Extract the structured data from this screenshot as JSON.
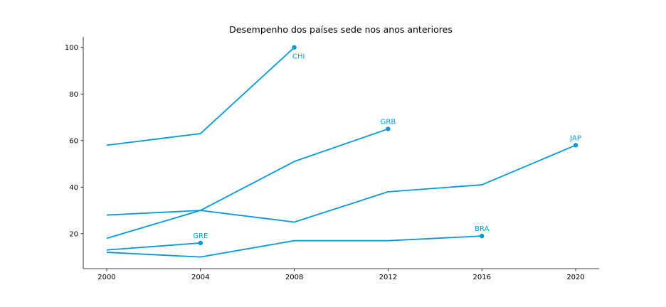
{
  "chart_data": {
    "type": "line",
    "title": "Desempenho dos países sede nos anos anteriores",
    "xlabel": "",
    "ylabel": "",
    "xlim": [
      1999,
      2021
    ],
    "ylim": [
      5,
      104.5
    ],
    "xticks": [
      2000,
      2004,
      2008,
      2012,
      2016,
      2020
    ],
    "yticks": [
      20,
      40,
      60,
      80,
      100
    ],
    "grid": false,
    "color": "#009ADA",
    "series": [
      {
        "label": "CHI",
        "x": [
          2000,
          2004,
          2008
        ],
        "y": [
          58,
          63,
          100
        ]
      },
      {
        "label": "GRB",
        "x": [
          2000,
          2004,
          2008,
          2012
        ],
        "y": [
          18,
          30,
          51,
          65
        ]
      },
      {
        "label": "JAP",
        "x": [
          2000,
          2004,
          2008,
          2012,
          2016,
          2020
        ],
        "y": [
          28,
          30,
          25,
          38,
          41,
          58
        ]
      },
      {
        "label": "GRE",
        "x": [
          2000,
          2004
        ],
        "y": [
          13,
          16
        ]
      },
      {
        "label": "BRA",
        "x": [
          2000,
          2004,
          2008,
          2012,
          2016
        ],
        "y": [
          12,
          10,
          17,
          17,
          19
        ]
      }
    ]
  }
}
